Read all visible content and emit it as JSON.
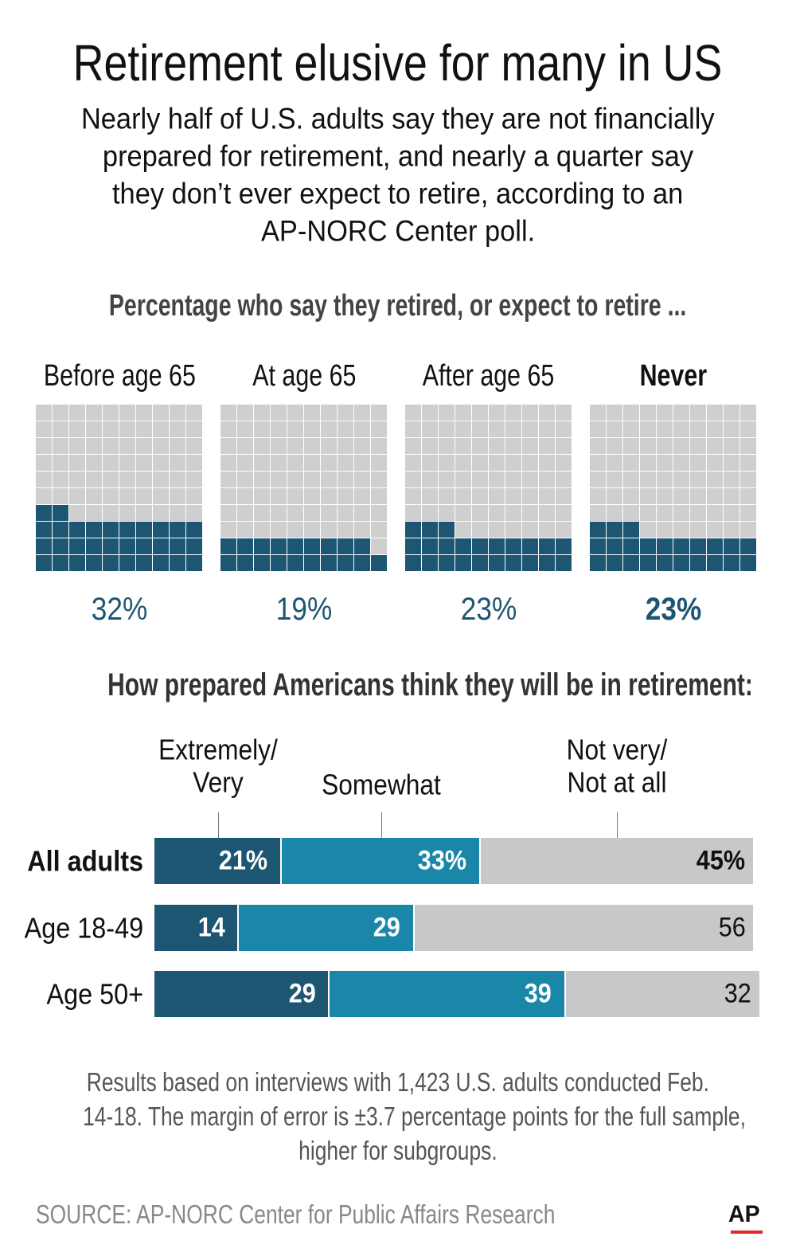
{
  "title": "Retirement elusive for many in US",
  "subtitle": [
    "Nearly half of U.S. adults say they are not financially",
    "prepared for retirement, and nearly a quarter say",
    "they don’t ever expect to retire, according to an",
    "AP-NORC Center poll."
  ],
  "chart_data": [
    {
      "type": "waffle",
      "title": "Percentage who say they retired, or expect to retire ...",
      "categories": [
        "Before age 65",
        "At age 65",
        "After age 65",
        "Never"
      ],
      "values": [
        32,
        19,
        23,
        23
      ],
      "value_labels": [
        "32%",
        "19%",
        "23%",
        "23%"
      ],
      "bold": [
        false,
        false,
        false,
        true
      ],
      "color": "#1d5673",
      "empty_color": "#cfcfcf"
    },
    {
      "type": "stacked_bar",
      "title": "How prepared Americans think they will be in retirement:",
      "categories": [
        "All adults",
        "Age 18-49",
        "Age 50+"
      ],
      "bold": [
        true,
        false,
        false
      ],
      "series": [
        {
          "name": "Extremely/ Very",
          "color": "#1d5673",
          "values": [
            21,
            14,
            29
          ],
          "value_labels": [
            "21%",
            "14",
            "29"
          ]
        },
        {
          "name": "Somewhat",
          "color": "#1a86a8",
          "values": [
            33,
            29,
            39
          ],
          "value_labels": [
            "33%",
            "29",
            "39"
          ]
        },
        {
          "name": "Not very/ Not at all",
          "color": "#c8c8c8",
          "values": [
            45,
            56,
            32
          ],
          "value_labels": [
            "45%",
            "56",
            "32"
          ]
        }
      ]
    }
  ],
  "note": [
    "Results based on interviews with 1,423 U.S. adults conducted Feb.",
    "14-18. The margin of error is ±3.7 percentage points for the full sample,",
    "higher for subgroups."
  ],
  "source": "SOURCE: AP-NORC Center for Public Affairs Research",
  "logo": "AP"
}
